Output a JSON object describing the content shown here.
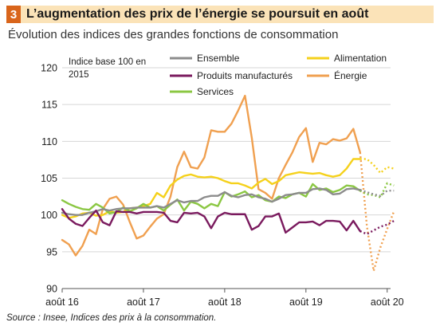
{
  "figure": {
    "number": "3",
    "title": "L’augmentation des prix de l’énergie se poursuit en août",
    "subtitle": "Évolution des indices des grandes fonctions de consommation",
    "source": "Source : Insee, Indices des prix à la consommation."
  },
  "chart_data": {
    "type": "line",
    "note": [
      "Indice base 100 en",
      "2015"
    ],
    "ylim": [
      90,
      120
    ],
    "yticks": [
      90,
      95,
      100,
      105,
      110,
      115,
      120
    ],
    "xlim": [
      0,
      48.5
    ],
    "xticks": [
      {
        "label": "août 16",
        "x": 0
      },
      {
        "label": "août 17",
        "x": 12
      },
      {
        "label": "août 18",
        "x": 24
      },
      {
        "label": "août 19",
        "x": 36
      },
      {
        "label": "août 20",
        "x": 48
      }
    ],
    "grid": "horizontal",
    "legend": "top",
    "dotted_from_index": 44,
    "series": [
      {
        "name": "Énergie",
        "color": "#f0a050",
        "values": [
          96.6,
          96,
          94.5,
          95.8,
          98,
          97.4,
          100.8,
          102.2,
          102.5,
          101.4,
          99,
          96.8,
          97.2,
          98.4,
          99.5,
          100.1,
          102.5,
          106.5,
          108.6,
          106.5,
          106.3,
          107.8,
          111.5,
          111.3,
          111.3,
          112.4,
          114.2,
          116.2,
          110.5,
          103.5,
          103,
          102.2,
          105,
          106.8,
          108.5,
          110.6,
          111.8,
          107.2,
          109.8,
          109.6,
          110.3,
          110.1,
          110.4,
          111.7,
          108.5,
          98.5,
          92.4,
          95.6,
          98.1,
          100.5
        ]
      },
      {
        "name": "Alimentation",
        "color": "#f5d11b",
        "values": [
          100,
          99.6,
          99.8,
          100.2,
          100.3,
          99.9,
          100,
          100.5,
          100.3,
          100.4,
          100.9,
          101,
          101.2,
          101.5,
          103,
          102.4,
          104,
          104.8,
          105.3,
          105.5,
          105.2,
          105.1,
          105.2,
          105,
          104.6,
          104.3,
          104.3,
          104,
          103.6,
          104.4,
          104.9,
          104.2,
          104.6,
          105.4,
          105.6,
          105.8,
          105.7,
          105.6,
          105.7,
          105.4,
          105.2,
          105.4,
          106.3,
          107.6,
          107.6,
          107.6,
          106.8,
          105.7,
          106.5,
          106.3
        ]
      },
      {
        "name": "Services",
        "color": "#8bc743",
        "values": [
          102,
          101.5,
          101.1,
          100.8,
          100.7,
          101.5,
          101,
          100.2,
          100.4,
          101,
          100.5,
          100.9,
          101.5,
          101,
          101.2,
          100.6,
          101.4,
          102.1,
          100.6,
          101.8,
          101.5,
          100.9,
          101.5,
          101.2,
          103.1,
          102.5,
          102.8,
          103.2,
          102.4,
          102.7,
          102,
          101.8,
          102.5,
          102.3,
          102.8,
          103,
          102.5,
          104.2,
          103.4,
          103.6,
          103.1,
          103.4,
          104,
          103.9,
          103.3,
          102.8,
          102.7,
          102.4,
          104.3,
          104
        ]
      },
      {
        "name": "Ensemble",
        "color": "#8c8c8c",
        "values": [
          100.3,
          100.1,
          100,
          100,
          100.3,
          100.5,
          100.8,
          100.6,
          100.8,
          100.9,
          100.9,
          101,
          101,
          101,
          101.2,
          101,
          101.5,
          102,
          101.7,
          101.9,
          101.9,
          102.4,
          102.6,
          102.6,
          103.1,
          102.6,
          102.4,
          102.7,
          102.8,
          102.4,
          102.2,
          101.8,
          102.2,
          102.7,
          102.8,
          103,
          103,
          103.5,
          103.6,
          103.4,
          102.8,
          102.9,
          103.5,
          103.6,
          103.4,
          103.1,
          102.8,
          102.6,
          103.3,
          103.3
        ]
      },
      {
        "name": "Produits manufacturés",
        "color": "#7a1a5e",
        "values": [
          100.8,
          99.5,
          98.8,
          98.5,
          99.6,
          100.6,
          99,
          98.6,
          100.5,
          100.4,
          100.4,
          100.2,
          100.4,
          100.4,
          100.4,
          100.3,
          99.2,
          99,
          100.3,
          100.2,
          100.3,
          99.8,
          98.2,
          99.8,
          100.3,
          100.1,
          100.1,
          100.1,
          98,
          98.5,
          99.8,
          99.8,
          100.2,
          97.6,
          98.3,
          99,
          99,
          99.1,
          98.6,
          99.2,
          99.2,
          99.1,
          97.9,
          99.2,
          97.8,
          97.4,
          97.9,
          98.4,
          98.7,
          99.2
        ]
      }
    ],
    "legend_layout": [
      {
        "series": 3,
        "col": 0,
        "row": 0
      },
      {
        "series": 1,
        "col": 1,
        "row": 0
      },
      {
        "series": 4,
        "col": 0,
        "row": 1
      },
      {
        "series": 0,
        "col": 1,
        "row": 1
      },
      {
        "series": 2,
        "col": 0,
        "row": 2
      }
    ]
  }
}
